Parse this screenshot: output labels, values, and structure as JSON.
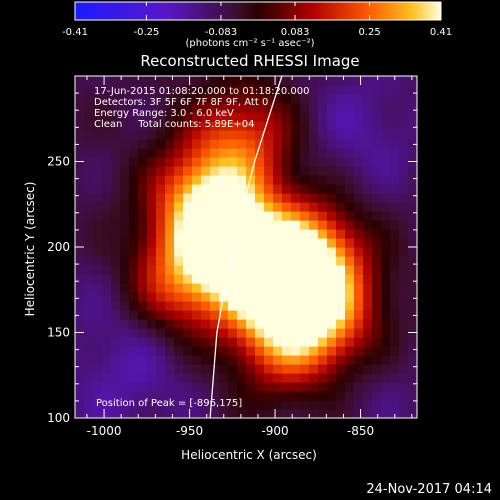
{
  "title": "Reconstructed RHESSI Image",
  "info_lines": [
    "17-Jun-2015 01:08:20.000 to 01:18:20.000",
    "Detectors: 3F 5F 6F 7F 8F 9F, Att 0",
    "Energy Range: 3.0 - 6.0 keV",
    "Clean     Total counts: 5.89E+04"
  ],
  "peak_label": "Position of Peak = [-896,175]",
  "footer_date": "24-Nov-2017 04:14",
  "colorbar": {
    "unit_label": "(photons cm⁻² s⁻¹ asec⁻²)",
    "tick_labels": [
      "-0.41",
      "-0.25",
      "-0.083",
      "0.083",
      "0.25",
      "0.41"
    ],
    "range": [
      -0.41,
      0.41
    ]
  },
  "chart_data": {
    "type": "heatmap",
    "title": "Reconstructed RHESSI Image",
    "xlabel": "Heliocentric X (arcsec)",
    "ylabel": "Heliocentric Y (arcsec)",
    "xlim": [
      -1017,
      -817
    ],
    "ylim": [
      100,
      300
    ],
    "x_ticks": [
      -1000,
      -950,
      -900,
      -850
    ],
    "y_ticks": [
      100,
      150,
      200,
      250
    ],
    "value_range": [
      -0.41,
      0.41
    ],
    "peak": {
      "x": -896,
      "y": 175
    },
    "sources": [
      {
        "x": -896,
        "y": 175,
        "value": 0.41
      },
      {
        "x": -925,
        "y": 201,
        "value": 0.36
      },
      {
        "x": -940,
        "y": 228,
        "value": 0.31
      },
      {
        "x": -880,
        "y": 196,
        "value": 0.27
      },
      {
        "x": -870,
        "y": 160,
        "value": 0.2
      },
      {
        "x": -955,
        "y": 180,
        "value": 0.2
      },
      {
        "x": -918,
        "y": 265,
        "value": 0.17
      },
      {
        "x": -895,
        "y": 140,
        "value": 0.12
      },
      {
        "x": -985,
        "y": 120,
        "value": -0.12
      },
      {
        "x": -850,
        "y": 270,
        "value": -0.13
      },
      {
        "x": -995,
        "y": 160,
        "value": -0.07
      },
      {
        "x": -840,
        "y": 115,
        "value": -0.06
      }
    ],
    "limb": [
      {
        "x": -938,
        "y": 100
      },
      {
        "x": -934,
        "y": 150
      },
      {
        "x": -925,
        "y": 200
      },
      {
        "x": -912,
        "y": 250
      },
      {
        "x": -896,
        "y": 300
      }
    ]
  }
}
